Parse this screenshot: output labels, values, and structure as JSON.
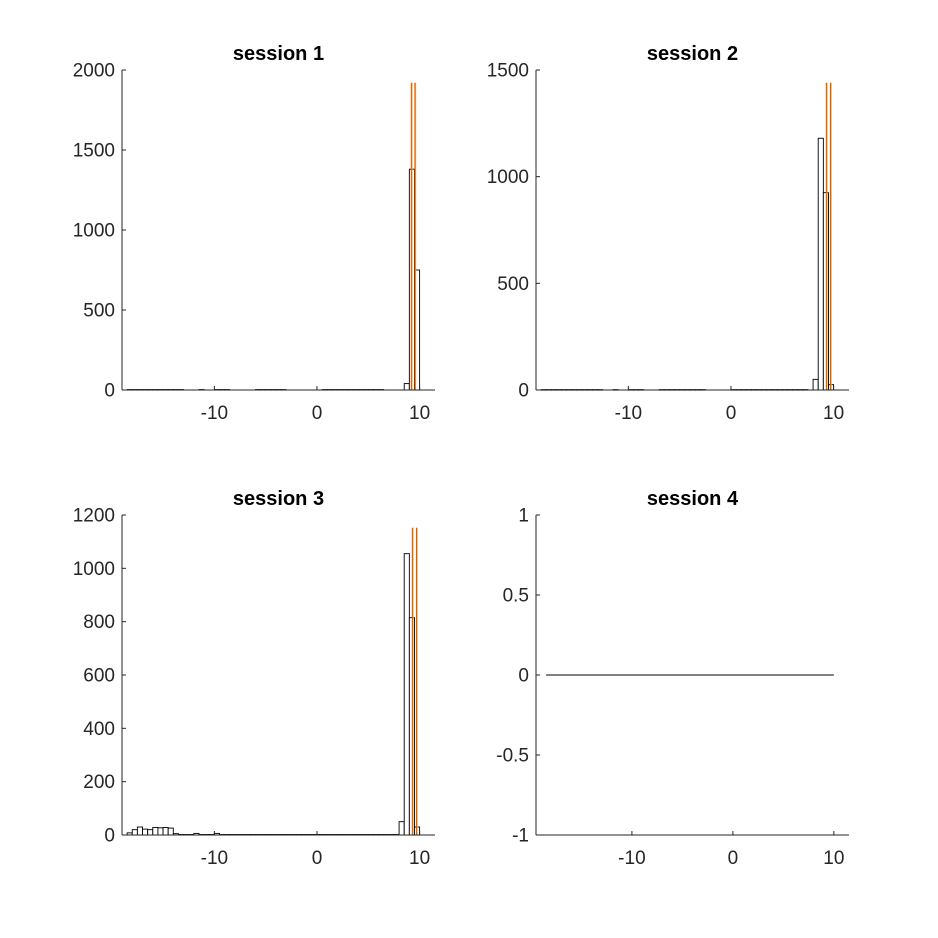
{
  "chart_data": [
    {
      "type": "bar",
      "title": "session 1",
      "xlabel": "",
      "ylabel": "",
      "xlim": [
        -19,
        11.5
      ],
      "ylim": [
        0,
        2000
      ],
      "xticks": [
        -10,
        0,
        10
      ],
      "xtick_labels": [
        "-10",
        "0",
        "10"
      ],
      "yticks": [
        0,
        500,
        1000,
        1500,
        2000
      ],
      "ytick_labels": [
        "0",
        "500",
        "1000",
        "1500",
        "2000"
      ],
      "bin_width": 0.5,
      "bins": [
        {
          "x": 8.5,
          "value": 40
        },
        {
          "x": 9.0,
          "value": 1380
        },
        {
          "x": 9.5,
          "value": 750
        }
      ],
      "low_count_ranges": [
        [
          -18.5,
          -13
        ],
        [
          -11.5,
          -11
        ],
        [
          -10,
          -8.5
        ],
        [
          -6,
          -3
        ],
        [
          0.5,
          6.5
        ]
      ],
      "low_count_value": 3,
      "vlines": [
        9.2,
        9.55
      ],
      "grid": false,
      "legend": "none"
    },
    {
      "type": "bar",
      "title": "session 2",
      "xlabel": "",
      "ylabel": "",
      "xlim": [
        -19,
        11.5
      ],
      "ylim": [
        0,
        1500
      ],
      "xticks": [
        -10,
        0,
        10
      ],
      "xtick_labels": [
        "-10",
        "0",
        "10"
      ],
      "yticks": [
        0,
        500,
        1000,
        1500
      ],
      "ytick_labels": [
        "0",
        "500",
        "1000",
        "1500"
      ],
      "bin_width": 0.5,
      "bins": [
        {
          "x": 8.0,
          "value": 50
        },
        {
          "x": 8.5,
          "value": 1180
        },
        {
          "x": 9.0,
          "value": 925
        },
        {
          "x": 9.5,
          "value": 25
        }
      ],
      "low_count_ranges": [
        [
          -18.5,
          -12.5
        ],
        [
          -11.5,
          -11
        ],
        [
          -10,
          -8.5
        ],
        [
          -7,
          -2.5
        ],
        [
          0,
          7.5
        ]
      ],
      "low_count_value": 2,
      "vlines": [
        9.3,
        9.7
      ],
      "grid": false,
      "legend": "none"
    },
    {
      "type": "bar",
      "title": "session 3",
      "xlabel": "",
      "ylabel": "",
      "xlim": [
        -19,
        11.5
      ],
      "ylim": [
        0,
        1200
      ],
      "xticks": [
        -10,
        0,
        10
      ],
      "xtick_labels": [
        "-10",
        "0",
        "10"
      ],
      "yticks": [
        0,
        200,
        400,
        600,
        800,
        1000,
        1200
      ],
      "ytick_labels": [
        "0",
        "200",
        "400",
        "600",
        "800",
        "1000",
        "1200"
      ],
      "bin_width": 0.5,
      "bins": [
        {
          "x": -18.5,
          "value": 8
        },
        {
          "x": -18.0,
          "value": 20
        },
        {
          "x": -17.5,
          "value": 30
        },
        {
          "x": -17.0,
          "value": 22
        },
        {
          "x": -16.5,
          "value": 20
        },
        {
          "x": -16.0,
          "value": 28
        },
        {
          "x": -15.5,
          "value": 27
        },
        {
          "x": -15.0,
          "value": 28
        },
        {
          "x": -14.5,
          "value": 26
        },
        {
          "x": -14.0,
          "value": 5
        },
        {
          "x": -12.0,
          "value": 6
        },
        {
          "x": -10.0,
          "value": 6
        },
        {
          "x": 8.0,
          "value": 50
        },
        {
          "x": 8.5,
          "value": 1055
        },
        {
          "x": 9.0,
          "value": 815
        },
        {
          "x": 9.5,
          "value": 30
        }
      ],
      "low_count_ranges": [
        [
          -13.5,
          -12
        ],
        [
          -11.5,
          8
        ]
      ],
      "low_count_value": 2,
      "vlines": [
        9.3,
        9.7
      ],
      "grid": false,
      "legend": "none"
    },
    {
      "type": "line",
      "title": "session 4",
      "xlabel": "",
      "ylabel": "",
      "xlim": [
        -19.5,
        11.5
      ],
      "ylim": [
        -1,
        1
      ],
      "xticks": [
        -10,
        0,
        10
      ],
      "xtick_labels": [
        "-10",
        "0",
        "10"
      ],
      "yticks": [
        -1,
        -0.5,
        0,
        0.5,
        1
      ],
      "ytick_labels": [
        "-1",
        "-0.5",
        "0",
        "0.5",
        "1"
      ],
      "x": [
        -18.5,
        10
      ],
      "y": [
        0,
        0
      ],
      "grid": false,
      "legend": "none"
    }
  ]
}
